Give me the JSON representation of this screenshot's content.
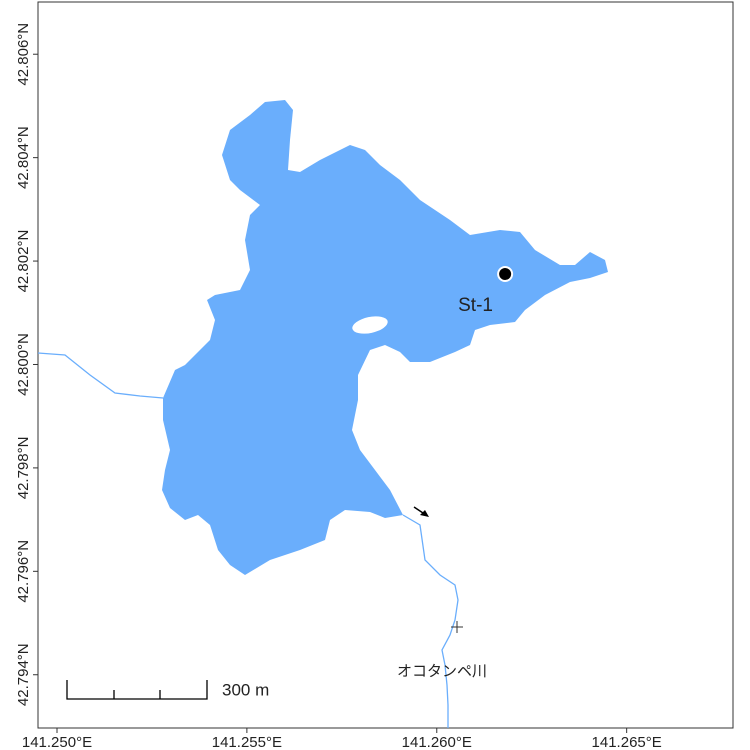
{
  "map": {
    "xlim": [
      141.2495,
      141.2678
    ],
    "ylim": [
      42.79297,
      42.80701
    ],
    "xticks": [
      {
        "value": 141.25,
        "label": "141.250°E"
      },
      {
        "value": 141.255,
        "label": "141.255°E"
      },
      {
        "value": 141.26,
        "label": "141.260°E"
      },
      {
        "value": 141.265,
        "label": "141.265°E"
      }
    ],
    "yticks": [
      {
        "value": 42.794,
        "label": "42.794°N"
      },
      {
        "value": 42.796,
        "label": "42.796°N"
      },
      {
        "value": 42.798,
        "label": "42.798°N"
      },
      {
        "value": 42.8,
        "label": "42.800°N"
      },
      {
        "value": 42.802,
        "label": "42.802°N"
      },
      {
        "value": 42.804,
        "label": "42.804°N"
      },
      {
        "value": 42.806,
        "label": "42.806°N"
      }
    ],
    "stations": [
      {
        "label": "St-1",
        "lon": 141.2618,
        "lat": 42.80175
      }
    ],
    "scale_label": "300 m",
    "river_label": "オコタンペ川"
  }
}
